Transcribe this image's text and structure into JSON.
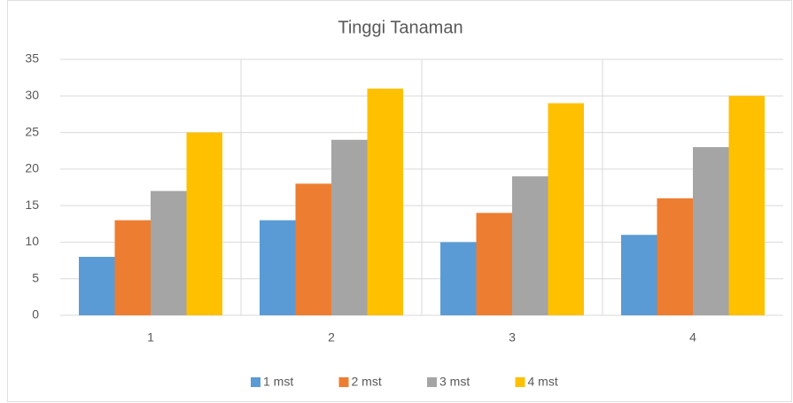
{
  "chart_data": {
    "type": "bar",
    "title": "Tinggi Tanaman",
    "categories": [
      "1",
      "2",
      "3",
      "4"
    ],
    "series": [
      {
        "name": "1 mst",
        "color": "#5b9bd5",
        "values": [
          8,
          13,
          10,
          11
        ]
      },
      {
        "name": "2 mst",
        "color": "#ed7d31",
        "values": [
          13,
          18,
          14,
          16
        ]
      },
      {
        "name": "3 mst",
        "color": "#a5a5a5",
        "values": [
          17,
          24,
          19,
          23
        ]
      },
      {
        "name": "4 mst",
        "color": "#ffc000",
        "values": [
          25,
          31,
          29,
          30
        ]
      }
    ],
    "ylim": [
      0,
      35
    ],
    "yticks": [
      0,
      5,
      10,
      15,
      20,
      25,
      30,
      35
    ],
    "grid": true,
    "legend": "bottom"
  }
}
